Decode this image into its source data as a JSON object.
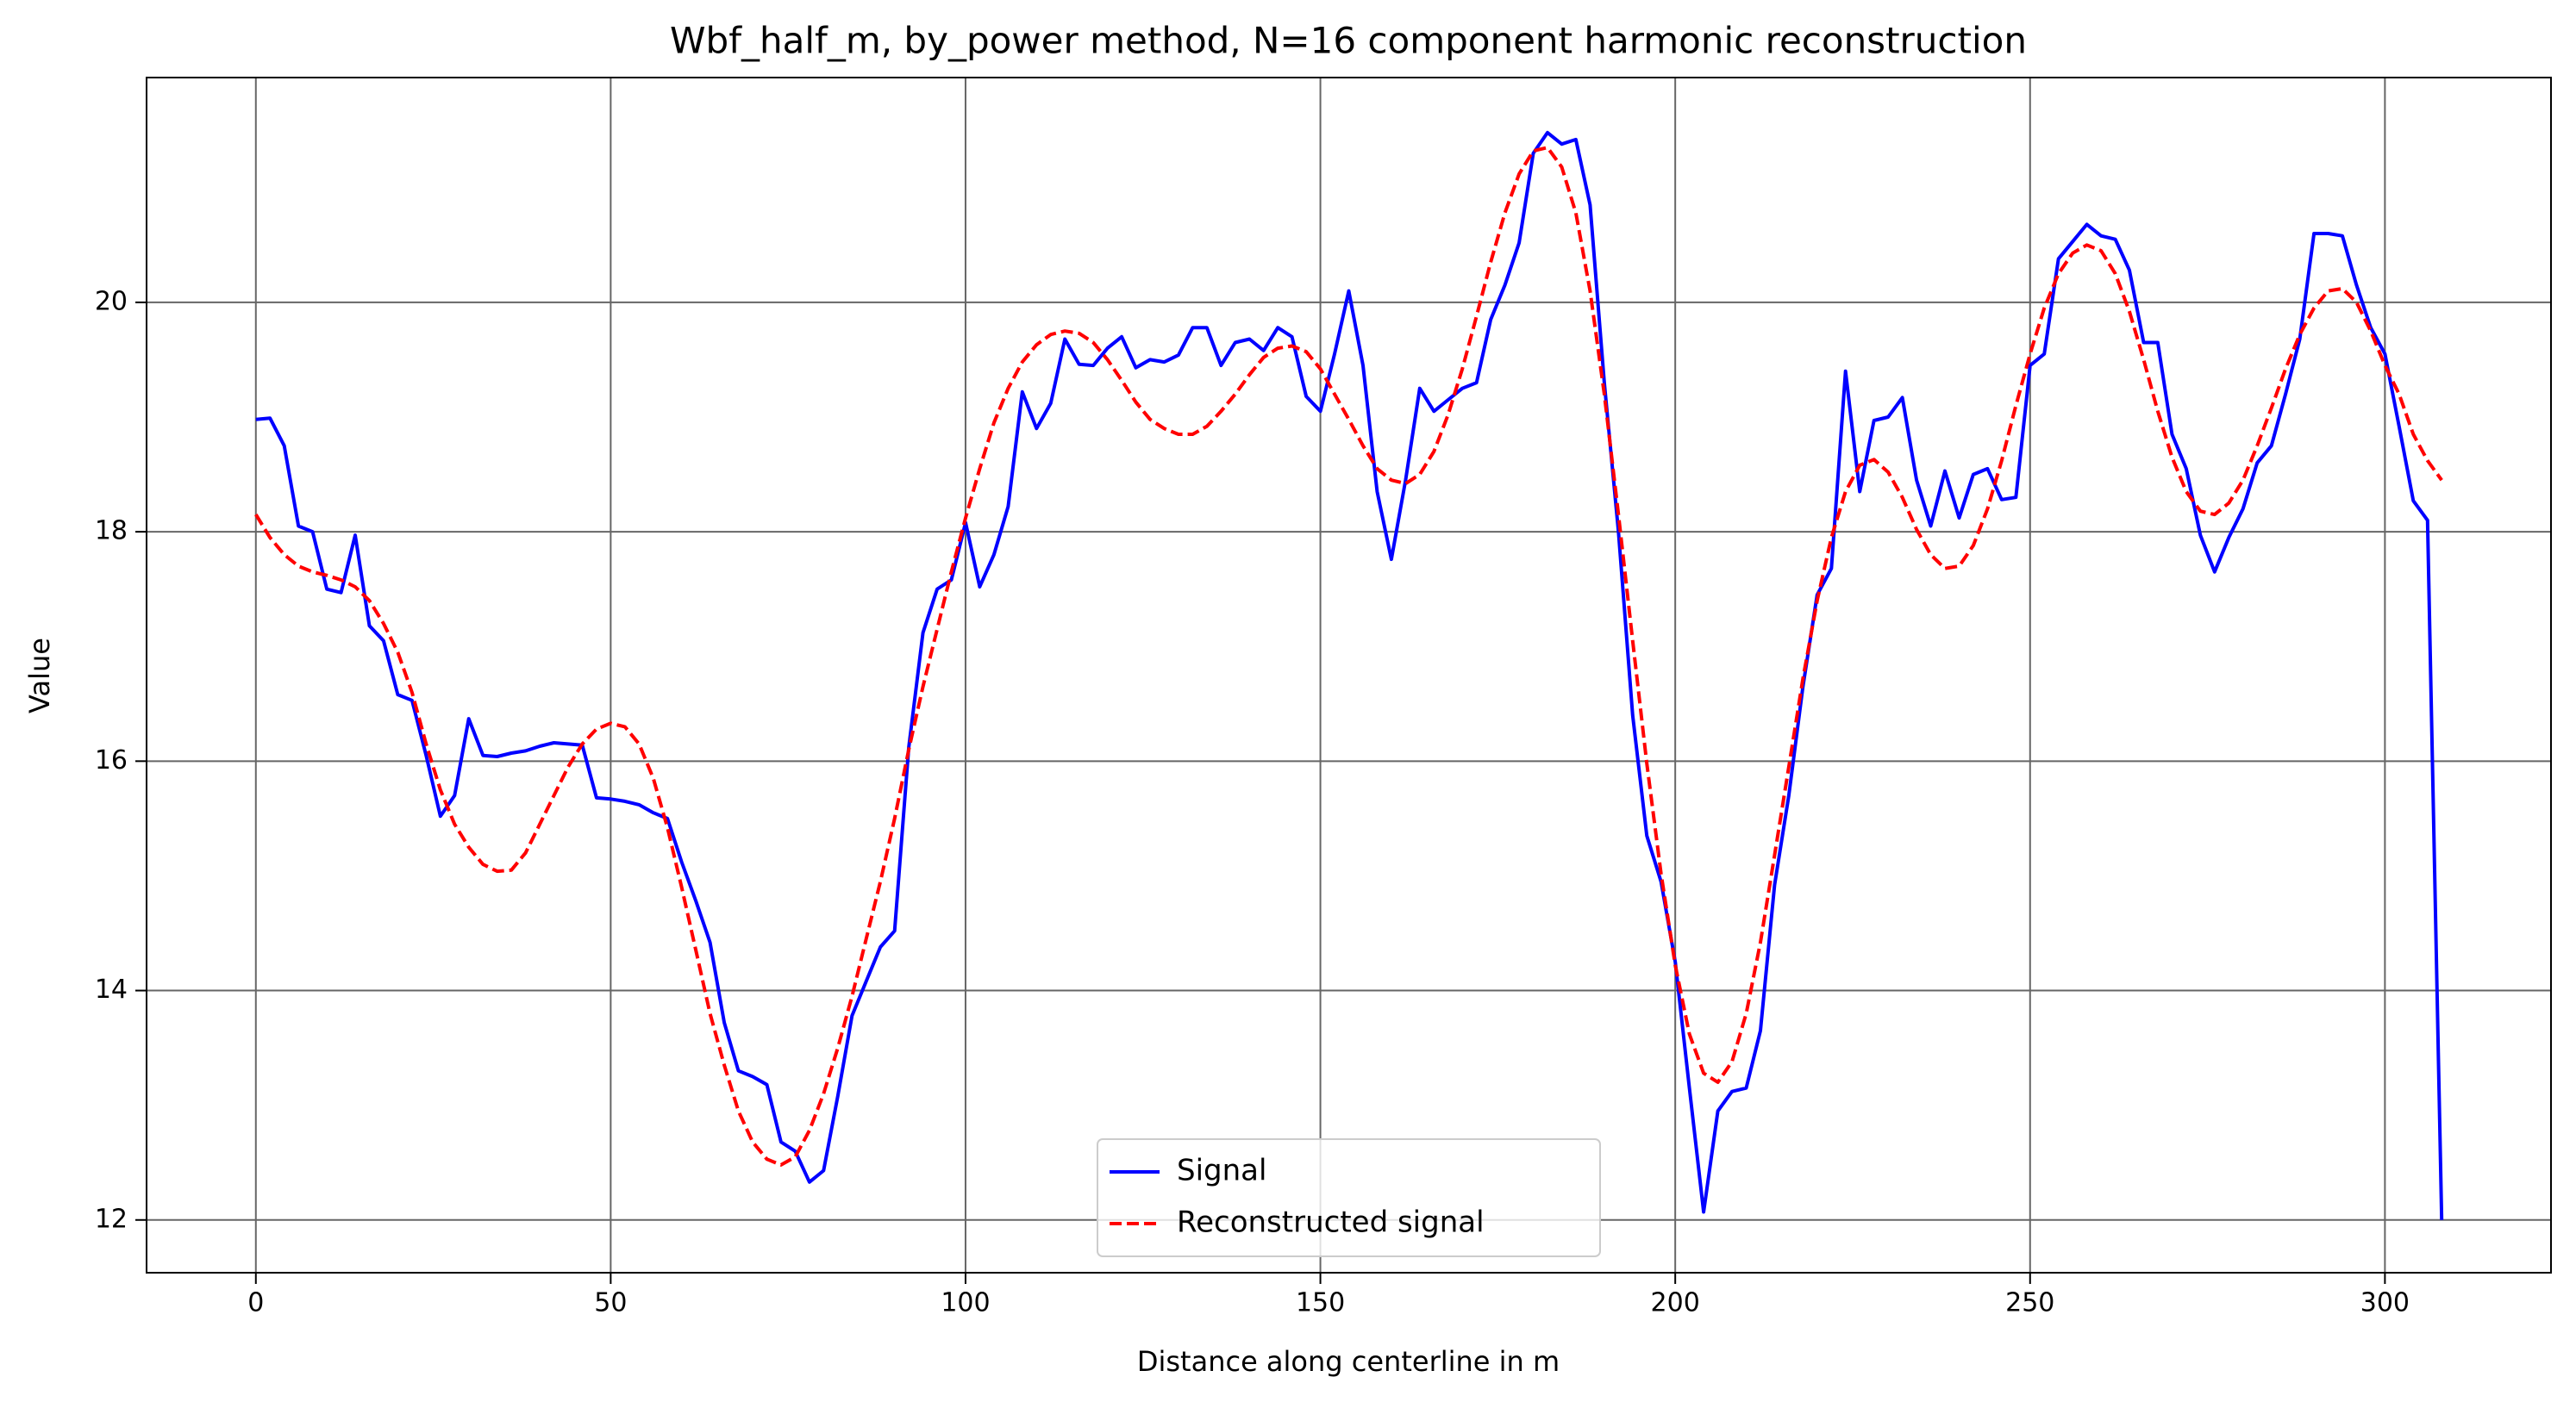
{
  "chart_data": {
    "type": "line",
    "title": "Wbf_half_m, by_power method, N=16 component harmonic reconstruction",
    "xlabel": "Distance along centerline in m",
    "ylabel": "Value",
    "x": [
      0,
      2,
      4,
      6,
      8,
      10,
      12,
      14,
      16,
      18,
      20,
      22,
      24,
      26,
      28,
      30,
      32,
      34,
      36,
      38,
      40,
      42,
      44,
      46,
      48,
      50,
      52,
      54,
      56,
      58,
      60,
      62,
      64,
      66,
      68,
      70,
      72,
      74,
      76,
      78,
      80,
      82,
      84,
      86,
      88,
      90,
      92,
      94,
      96,
      98,
      100,
      102,
      104,
      106,
      108,
      110,
      112,
      114,
      116,
      118,
      120,
      122,
      124,
      126,
      128,
      130,
      132,
      134,
      136,
      138,
      140,
      142,
      144,
      146,
      148,
      150,
      152,
      154,
      156,
      158,
      160,
      162,
      164,
      166,
      168,
      170,
      172,
      174,
      176,
      178,
      180,
      182,
      184,
      186,
      188,
      190,
      192,
      194,
      196,
      198,
      200,
      202,
      204,
      206,
      208,
      210,
      212,
      214,
      216,
      218,
      220,
      222,
      224,
      226,
      228,
      230,
      232,
      234,
      236,
      238,
      240,
      242,
      244,
      246,
      248,
      250,
      252,
      254,
      256,
      258,
      260,
      262,
      264,
      266,
      268,
      270,
      272,
      274,
      276,
      278,
      280,
      282,
      284,
      286,
      288,
      290,
      292,
      294,
      296,
      298,
      300,
      302,
      304,
      306,
      308
    ],
    "series": [
      {
        "name": "Signal",
        "color": "#0000ff",
        "linestyle": "solid",
        "values": [
          18.98,
          18.99,
          18.75,
          18.05,
          18.0,
          17.5,
          17.47,
          17.97,
          17.18,
          17.05,
          16.58,
          16.53,
          16.05,
          15.52,
          15.7,
          16.37,
          16.05,
          16.04,
          16.07,
          16.09,
          16.13,
          16.16,
          16.15,
          16.14,
          15.68,
          15.67,
          15.65,
          15.62,
          15.55,
          15.5,
          15.12,
          14.78,
          14.42,
          13.72,
          13.3,
          13.25,
          13.18,
          12.68,
          12.6,
          12.33,
          12.43,
          13.08,
          13.78,
          14.08,
          14.38,
          14.52,
          16.12,
          17.12,
          17.5,
          17.58,
          18.08,
          17.52,
          17.8,
          18.22,
          19.22,
          18.9,
          19.12,
          19.68,
          19.46,
          19.45,
          19.6,
          19.7,
          19.43,
          19.5,
          19.48,
          19.54,
          19.78,
          19.78,
          19.45,
          19.65,
          19.68,
          19.58,
          19.78,
          19.7,
          19.18,
          19.05,
          19.55,
          20.1,
          19.45,
          18.35,
          17.76,
          18.45,
          19.25,
          19.05,
          19.15,
          19.25,
          19.3,
          19.85,
          20.15,
          20.52,
          21.3,
          21.48,
          21.38,
          21.42,
          20.85,
          19.3,
          18.0,
          16.4,
          15.35,
          14.95,
          14.25,
          13.15,
          12.07,
          12.95,
          13.12,
          13.15,
          13.65,
          14.92,
          15.7,
          16.65,
          17.45,
          17.68,
          19.4,
          18.35,
          18.97,
          19.0,
          19.17,
          18.45,
          18.05,
          18.53,
          18.12,
          18.5,
          18.55,
          18.28,
          18.3,
          19.45,
          19.55,
          20.38,
          20.53,
          20.68,
          20.58,
          20.55,
          20.28,
          19.65,
          19.65,
          18.85,
          18.55,
          17.97,
          17.65,
          17.95,
          18.2,
          18.6,
          18.75,
          19.2,
          19.68,
          20.6,
          20.6,
          20.58,
          20.15,
          19.78,
          19.55,
          18.92,
          18.27,
          18.1,
          12.0
        ]
      },
      {
        "name": "Reconstructed signal",
        "color": "#ff0000",
        "linestyle": "dashed",
        "values": [
          18.15,
          17.95,
          17.8,
          17.7,
          17.65,
          17.62,
          17.58,
          17.52,
          17.4,
          17.2,
          16.95,
          16.6,
          16.15,
          15.75,
          15.45,
          15.25,
          15.1,
          15.04,
          15.05,
          15.2,
          15.45,
          15.7,
          15.95,
          16.15,
          16.28,
          16.33,
          16.3,
          16.15,
          15.85,
          15.42,
          14.9,
          14.35,
          13.8,
          13.35,
          12.95,
          12.68,
          12.53,
          12.48,
          12.55,
          12.78,
          13.1,
          13.5,
          13.95,
          14.45,
          14.95,
          15.5,
          16.1,
          16.65,
          17.15,
          17.65,
          18.12,
          18.55,
          18.95,
          19.25,
          19.48,
          19.63,
          19.72,
          19.75,
          19.73,
          19.65,
          19.5,
          19.32,
          19.13,
          18.98,
          18.9,
          18.85,
          18.85,
          18.92,
          19.05,
          19.2,
          19.37,
          19.52,
          19.6,
          19.62,
          19.57,
          19.42,
          19.2,
          18.98,
          18.75,
          18.55,
          18.45,
          18.42,
          18.5,
          18.7,
          19.02,
          19.42,
          19.88,
          20.35,
          20.78,
          21.12,
          21.32,
          21.35,
          21.18,
          20.78,
          20.1,
          19.2,
          18.15,
          17.05,
          15.98,
          15.02,
          14.22,
          13.62,
          13.28,
          13.2,
          13.38,
          13.8,
          14.42,
          15.18,
          15.95,
          16.72,
          17.4,
          17.95,
          18.35,
          18.58,
          18.63,
          18.52,
          18.3,
          18.02,
          17.8,
          17.68,
          17.7,
          17.88,
          18.2,
          18.62,
          19.1,
          19.55,
          19.95,
          20.25,
          20.43,
          20.5,
          20.45,
          20.25,
          19.92,
          19.5,
          19.05,
          18.65,
          18.35,
          18.18,
          18.15,
          18.25,
          18.45,
          18.75,
          19.08,
          19.42,
          19.72,
          19.95,
          20.1,
          20.12,
          20.0,
          19.75,
          19.45,
          19.2,
          18.85,
          18.62,
          18.45
        ]
      }
    ],
    "xlim": [
      -15.4,
      323.4
    ],
    "ylim": [
      11.54,
      21.96
    ],
    "xticks": [
      0,
      50,
      100,
      150,
      200,
      250,
      300
    ],
    "yticks": [
      12,
      14,
      16,
      18,
      20
    ],
    "grid": true,
    "legend": "lower center"
  }
}
